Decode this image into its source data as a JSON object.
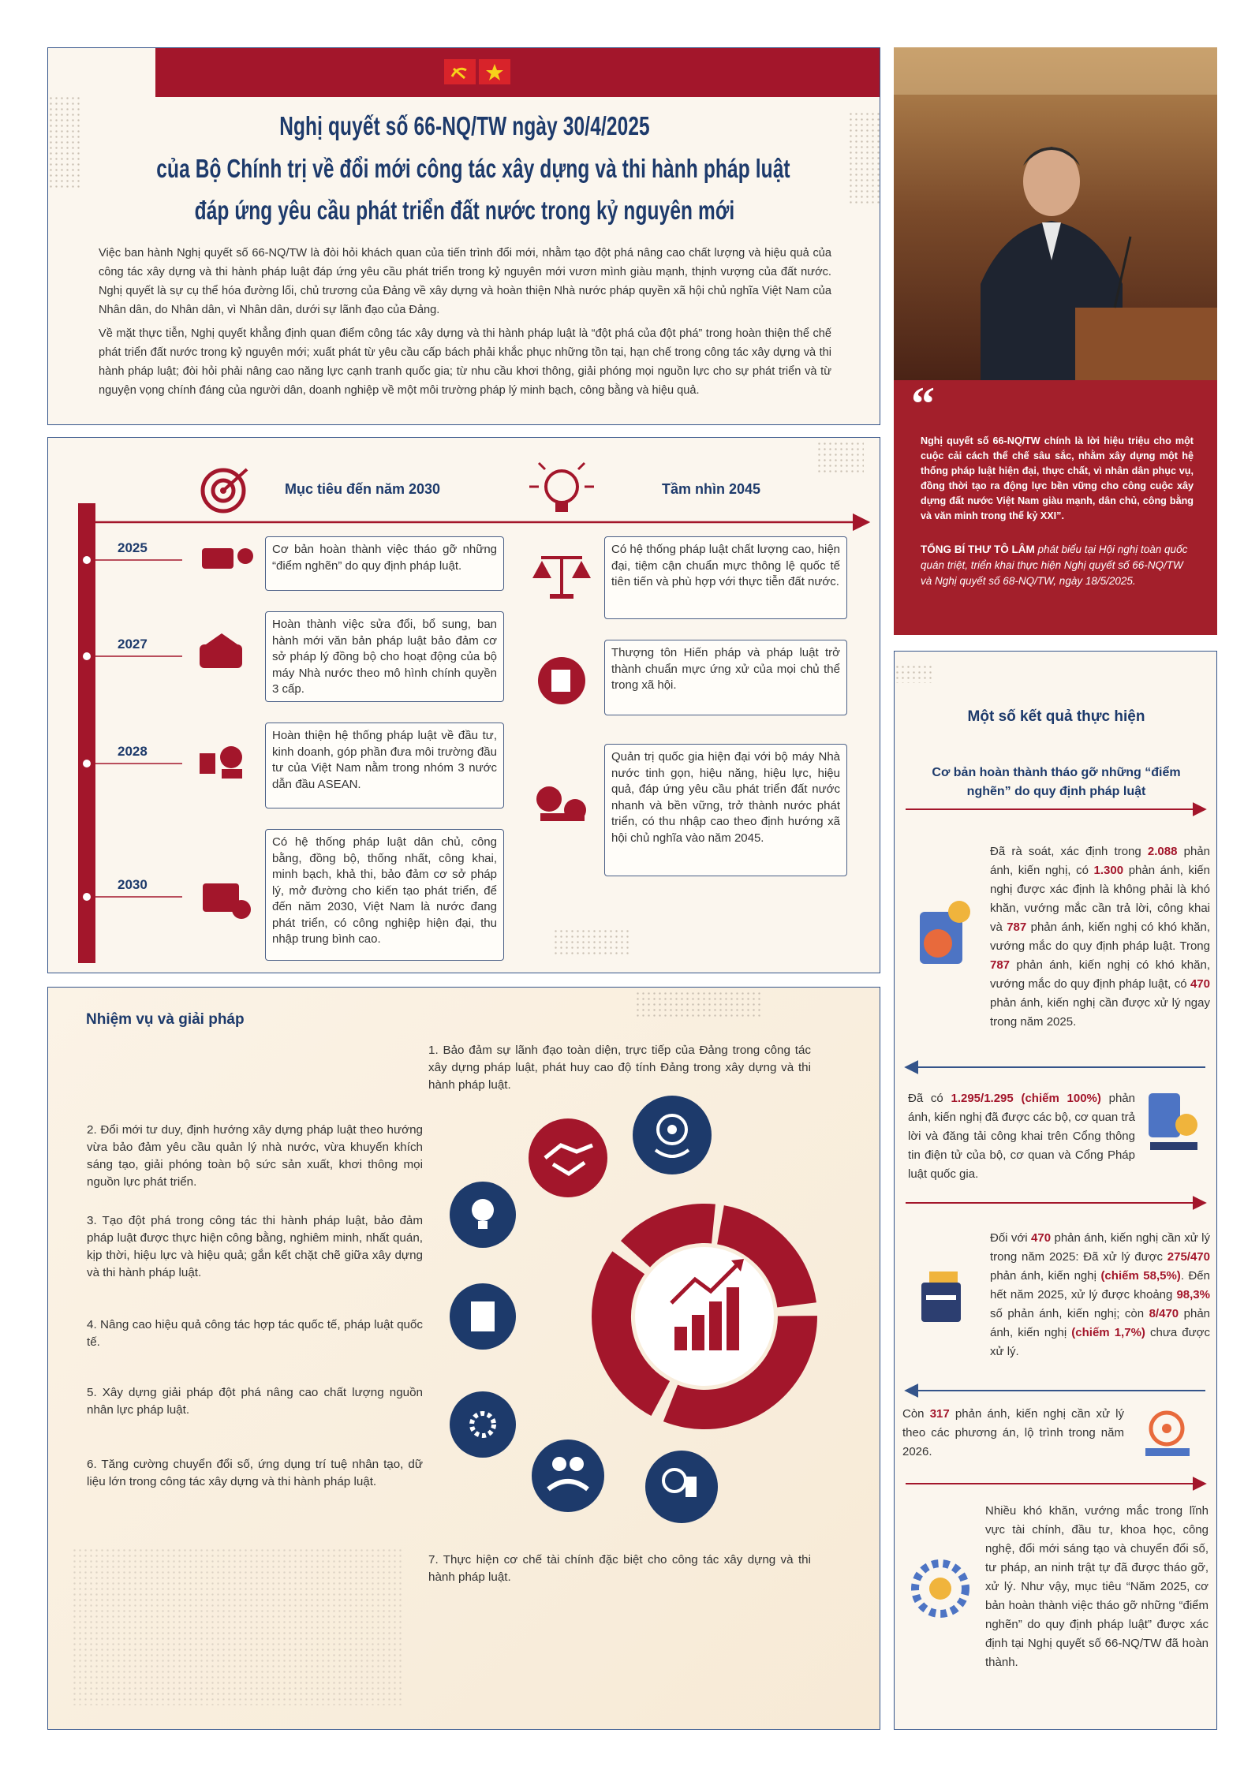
{
  "header": {
    "title": [
      "Nghị quyết số 66-NQ/TW ngày 30/4/2025",
      "của Bộ Chính trị về đổi mới công tác xây dựng và thi hành pháp luật",
      "đáp ứng yêu cầu phát triển đất nước trong kỷ nguyên mới"
    ],
    "paragraphs": [
      "Việc ban hành Nghị quyết số 66-NQ/TW là đòi hỏi khách quan của tiến trình đổi mới, nhằm tạo đột phá nâng cao chất lượng và hiệu quả của công tác xây dựng và thi hành pháp luật đáp ứng yêu cầu phát triển trong kỷ nguyên mới vươn mình giàu mạnh, thịnh vượng của đất nước. Nghị quyết là sự cụ thể hóa đường lối, chủ trương của Đảng về xây dựng và hoàn thiện Nhà nước pháp quyền xã hội chủ nghĩa Việt Nam của Nhân dân, do Nhân dân, vì Nhân dân, dưới sự lãnh đạo của Đảng.",
      "Về mặt thực tiễn, Nghị quyết khẳng định quan điểm công tác xây dựng và thi hành pháp luật là “đột phá của đột phá” trong hoàn thiện thể chế phát triển đất nước trong kỷ nguyên mới; xuất phát từ yêu cầu cấp bách phải khắc phục những tồn tại, hạn chế trong công tác xây dựng và thi hành pháp luật; đòi hỏi phải nâng cao năng lực cạnh tranh quốc gia; từ nhu cầu khơi thông, giải phóng mọi nguồn lực cho sự phát triển và từ nguyện vọng chính đáng của người dân, doanh nghiệp về một môi trường pháp lý minh bạch, công bằng và hiệu quả."
    ]
  },
  "quote": {
    "mark": "“",
    "text": "Nghị quyết số 66-NQ/TW chính là lời hiệu triệu cho một cuộc cải cách thể chế sâu sắc, nhằm xây dựng một hệ thống pháp luật hiện đại, thực chất, vì nhân dân phục vụ, đồng thời tạo ra động lực bền vững cho công cuộc xây dựng đất nước Việt Nam giàu mạnh, dân chủ, công bằng và văn minh trong thế kỷ XXI”.",
    "speaker": "TỔNG BÍ THƯ TÔ LÂM",
    "context": " phát biểu tại Hội nghị toàn quốc quán triệt, triển khai thực hiện Nghị quyết số 66-NQ/TW và Nghị quyết số 68-NQ/TW, ngày 18/5/2025."
  },
  "timeline": {
    "goals_heading": "Mục tiêu đến năm 2030",
    "vision_heading": "Tầm nhìn 2045",
    "years": [
      "2025",
      "2027",
      "2028",
      "2030"
    ],
    "goals": [
      "Cơ bản hoàn thành việc tháo gỡ những “điểm nghẽn” do quy định pháp luật.",
      "Hoàn thành việc sửa đổi, bổ sung, ban hành mới văn bản pháp luật bảo đảm cơ sở pháp lý đồng bộ cho hoạt động của bộ máy Nhà nước theo mô hình chính quyền 3 cấp.",
      "Hoàn thiện hệ thống pháp luật về đầu tư, kinh doanh, góp phần đưa môi trường đầu tư của Việt Nam nằm trong nhóm 3 nước dẫn đầu ASEAN.",
      "Có hệ thống pháp luật dân chủ, công bằng, đồng bộ, thống nhất, công khai, minh bạch, khả thi, bảo đảm cơ sở pháp lý, mở đường cho kiến tạo phát triển, để đến năm 2030, Việt Nam là nước đang phát triển, có công nghiệp hiện đại, thu nhập trung bình cao."
    ],
    "vision": [
      "Có hệ thống pháp luật chất lượng cao, hiện đại, tiệm cận chuẩn mực thông lệ quốc tế tiên tiến và phù hợp với thực tiễn đất nước.",
      "Thượng tôn Hiến pháp và pháp luật trở thành chuẩn mực ứng xử của mọi chủ thể trong xã hội.",
      "Quản trị quốc gia hiện đại với bộ máy Nhà nước tinh gọn, hiệu năng, hiệu lực, hiệu quả, đáp ứng yêu cầu phát triển đất nước nhanh và bền vững, trở thành nước phát triển, có thu nhập cao theo định hướng xã hội chủ nghĩa vào năm 2045."
    ]
  },
  "tasks": {
    "heading": "Nhiệm vụ và giải pháp",
    "items": [
      "1. Bảo đảm sự lãnh đạo toàn diện, trực tiếp của Đảng trong công tác xây dựng pháp luật, phát huy cao độ tính Đảng trong xây dựng và thi hành pháp luật.",
      "2. Đổi mới tư duy, định hướng xây dựng pháp luật theo hướng vừa bảo đảm yêu cầu quản lý nhà nước, vừa khuyến khích sáng tạo, giải phóng toàn bộ sức sản xuất, khơi thông mọi nguồn lực phát triển.",
      "3. Tạo đột phá trong công tác thi hành pháp luật, bảo đảm pháp luật được thực hiện công bằng, nghiêm minh, nhất quán, kịp thời, hiệu lực và hiệu quả; gắn kết chặt chẽ giữa xây dựng và thi hành pháp luật.",
      "4. Nâng cao hiệu quả công tác hợp tác quốc tế, pháp luật quốc tế.",
      "5. Xây dựng giải pháp đột phá nâng cao chất lượng nguồn nhân lực pháp luật.",
      "6. Tăng cường chuyển đổi số, ứng dụng trí tuệ nhân tạo, dữ liệu lớn trong công tác xây dựng và thi hành pháp luật.",
      "7. Thực hiện cơ chế tài chính đặc biệt cho công tác xây dựng và thi hành pháp luật."
    ]
  },
  "results": {
    "heading": "Một số kết quả thực hiện",
    "subheading": "Cơ bản hoàn thành tháo gỡ những “điểm nghẽn” do quy định pháp luật",
    "items": [
      [
        "Đã rà soát, xác định trong ",
        "2.088",
        " phản ánh, kiến nghị, có ",
        "1.300",
        " phản ánh, kiến nghị được xác định là không phải là khó khăn, vướng mắc cần trả lời, công khai và ",
        "787",
        " phản ánh, kiến nghị có khó khăn, vướng mắc do quy định pháp luật. Trong ",
        "787",
        " phản ánh, kiến nghị có khó khăn, vướng mắc do quy định pháp luật, có ",
        "470",
        " phản ánh, kiến nghị cần được xử lý ngay trong năm 2025."
      ],
      [
        "Đã có ",
        "1.295/1.295 (chiếm 100%)",
        " phản ánh, kiến nghị đã được các bộ, cơ quan trả lời và đăng tải công khai trên Cổng thông tin điện tử của bộ, cơ quan và Cổng Pháp luật quốc gia."
      ],
      [
        "Đối với ",
        "470",
        " phản ánh, kiến nghị cần xử lý trong năm 2025: Đã xử lý được ",
        "275/470",
        " phản ánh, kiến nghị ",
        "(chiếm 58,5%)",
        ". Đến hết năm 2025, xử lý được khoảng ",
        "98,3%",
        " số phản ánh, kiến nghị; còn ",
        "8/470",
        " phản ánh, kiến nghị ",
        "(chiếm 1,7%)",
        " chưa được xử lý."
      ],
      [
        "Còn ",
        "317",
        " phản ánh, kiến nghị cần xử lý theo các phương án, lộ trình trong năm 2026."
      ],
      [
        "Nhiều khó khăn, vướng mắc trong lĩnh vực tài chính, đầu tư, khoa học, công nghệ, đổi mới sáng tạo và chuyển đổi số, tư pháp, an ninh trật tự đã được tháo gỡ, xử lý. Như vậy, mục tiêu “Năm 2025, cơ bản hoàn thành việc tháo gỡ những “điểm nghẽn” do quy định pháp luật” được xác định tại Nghị quyết số 66-NQ/TW đã hoàn thành."
      ]
    ]
  }
}
